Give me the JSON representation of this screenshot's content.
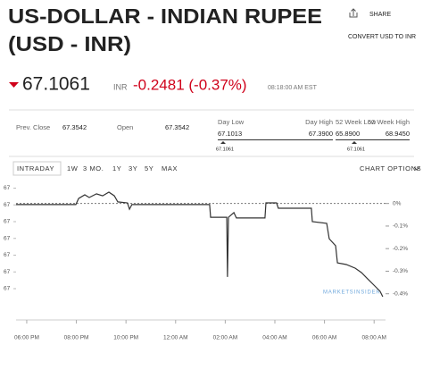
{
  "header": {
    "title_line1": "US-DOLLAR - INDIAN RUPEE",
    "title_line2": "(USD - INR)"
  },
  "actions": {
    "share": "SHARE",
    "convert": "CONVERT USD TO INR"
  },
  "quote": {
    "price": "67.1061",
    "currency": "INR",
    "change": "-0.2481 (-0.37%)",
    "time": "08:18:00 AM EST"
  },
  "stats": [
    {
      "label": "Prev. Close",
      "value": "67.3542"
    },
    {
      "label": "Open",
      "value": "67.3542"
    }
  ],
  "ranges": [
    {
      "low_label": "Day Low",
      "low": "67.1013",
      "high_label": "Day High",
      "high": "67.3900",
      "current": "67.1061"
    },
    {
      "low_label": "52 Week Low",
      "low": "65.8900",
      "high_label": "52 Week High",
      "high": "68.9450",
      "current": "67.1061"
    }
  ],
  "tabs": [
    "INTRADAY",
    "1W",
    "3 MO.",
    "1Y",
    "3Y",
    "5Y",
    "MAX"
  ],
  "chart_options": "CHART OPTIONS",
  "watermark": "MARKETSINSIDER",
  "chart_data": {
    "type": "line",
    "x": [
      -0.43,
      1.98,
      2.09,
      2.34,
      2.52,
      2.81,
      3.06,
      3.31,
      3.53,
      3.67,
      4.06,
      4.14,
      4.24,
      7.37,
      7.41,
      8.06,
      8.09,
      8.13,
      8.35,
      8.45,
      9.6,
      9.64,
      10.07,
      10.14,
      11.47,
      11.51,
      12.09,
      12.19,
      12.45,
      12.52,
      12.88,
      13.24,
      13.49,
      13.74,
      14.03,
      14.24,
      14.35
    ],
    "series": [
      {
        "color": "#333333",
        "values": [
          67.351,
          67.351,
          67.369,
          67.38,
          67.372,
          67.383,
          67.377,
          67.388,
          67.377,
          67.359,
          67.356,
          67.337,
          67.351,
          67.351,
          67.313,
          67.313,
          67.135,
          67.313,
          67.327,
          67.311,
          67.311,
          67.356,
          67.356,
          67.34,
          67.34,
          67.3,
          67.295,
          67.249,
          67.228,
          67.177,
          67.172,
          67.161,
          67.148,
          67.129,
          67.108,
          67.092,
          67.076
        ]
      }
    ],
    "xlim": [
      -0.43,
      14.46
    ],
    "xticks": [
      {
        "value": 0,
        "label": "06:00 PM"
      },
      {
        "value": 2,
        "label": "08:00 PM"
      },
      {
        "value": 4,
        "label": "10:00 PM"
      },
      {
        "value": 6,
        "label": "12:00 AM"
      },
      {
        "value": 8,
        "label": "02:00 AM"
      },
      {
        "value": 10,
        "label": "04:00 AM"
      },
      {
        "value": 12,
        "label": "06:00 AM"
      },
      {
        "value": 14,
        "label": "08:00 AM"
      }
    ],
    "ylim": [
      67.06,
      67.42
    ],
    "yticks": [
      {
        "value": 67.4,
        "label": "67"
      },
      {
        "value": 67.35,
        "label": "67"
      },
      {
        "value": 67.3,
        "label": "67"
      },
      {
        "value": 67.25,
        "label": "67"
      },
      {
        "value": 67.2,
        "label": "67"
      },
      {
        "value": 67.15,
        "label": "67"
      },
      {
        "value": 67.1,
        "label": "67"
      }
    ],
    "y2lim": [
      -0.4368,
      0.0977
    ],
    "y2ticks": [
      {
        "value": 0,
        "label": "0%"
      },
      {
        "value": -0.1,
        "label": "-0.1%"
      },
      {
        "value": -0.2,
        "label": "-0.2%"
      },
      {
        "value": -0.3,
        "label": "-0.3%"
      },
      {
        "value": -0.4,
        "label": "-0.4%"
      }
    ]
  }
}
